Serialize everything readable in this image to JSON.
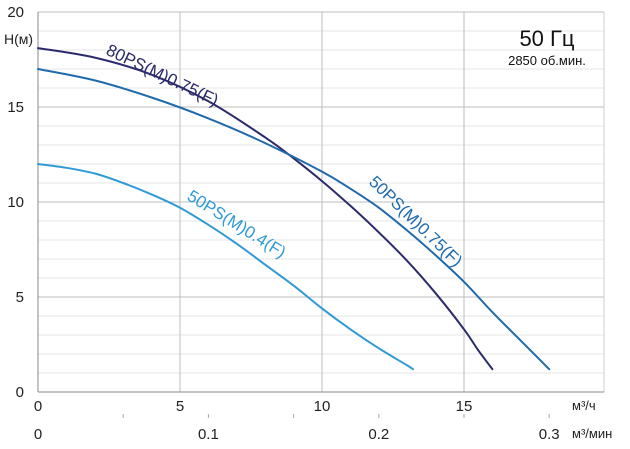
{
  "chart_data": {
    "type": "line",
    "ylabel": "H(м)",
    "xlabel_primary": "м³/ч",
    "xlabel_secondary": "м³/мин",
    "x_ticks": [
      "0",
      "5",
      "10",
      "15"
    ],
    "x_ticks_secondary": [
      "0",
      "0.1",
      "0.2",
      "0.3"
    ],
    "y_ticks": [
      "0",
      "5",
      "10",
      "15",
      "20"
    ],
    "xlim": [
      0,
      18
    ],
    "ylim": [
      0,
      20
    ],
    "grid": true,
    "frequency_label": "50 Гц",
    "speed_label": "2850 об.мин.",
    "series": [
      {
        "name": "80PS(M)0.75(F)",
        "color": "#2b2a6b",
        "x": [
          0,
          2,
          4,
          6,
          8,
          9,
          10,
          11,
          12,
          13,
          14,
          15,
          15.5,
          16.0
        ],
        "y": [
          18.1,
          17.6,
          16.7,
          15.3,
          13.4,
          12.3,
          11.1,
          9.8,
          8.4,
          6.9,
          5.2,
          3.3,
          2.2,
          1.2
        ]
      },
      {
        "name": "50PS(M)0.75(F)",
        "color": "#1f6aad",
        "x": [
          0,
          2,
          4,
          6,
          8,
          10,
          11,
          12,
          13,
          14,
          15,
          16,
          17,
          18.0
        ],
        "y": [
          17.0,
          16.4,
          15.5,
          14.4,
          13.1,
          11.6,
          10.7,
          9.7,
          8.5,
          7.2,
          5.8,
          4.2,
          2.7,
          1.2
        ]
      },
      {
        "name": "50PS(M)0.4(F)",
        "color": "#2f9bd6",
        "x": [
          0,
          1,
          2,
          3,
          4,
          5,
          6,
          7,
          8,
          9,
          10,
          11,
          12,
          13,
          13.2
        ],
        "y": [
          12.0,
          11.8,
          11.5,
          11.0,
          10.4,
          9.7,
          8.8,
          7.8,
          6.7,
          5.6,
          4.4,
          3.3,
          2.3,
          1.4,
          1.2
        ]
      }
    ]
  }
}
